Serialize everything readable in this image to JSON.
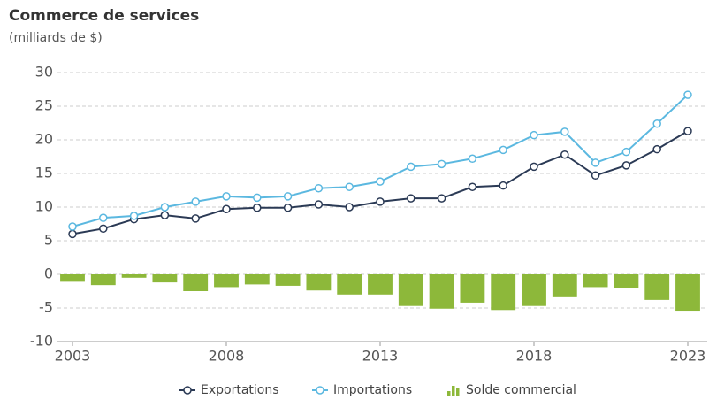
{
  "chart_data": {
    "type": "combo",
    "title": "Commerce de services",
    "subtitle": "(milliards de $)",
    "x": [
      2003,
      2004,
      2005,
      2006,
      2007,
      2008,
      2009,
      2010,
      2011,
      2012,
      2013,
      2014,
      2015,
      2016,
      2017,
      2018,
      2019,
      2020,
      2021,
      2022,
      2023
    ],
    "xlim": [
      2003,
      2023
    ],
    "xticks": [
      2003,
      2008,
      2013,
      2018,
      2023
    ],
    "ylim": [
      -10,
      30
    ],
    "yticks": [
      -10,
      -5,
      0,
      5,
      10,
      15,
      20,
      25,
      30
    ],
    "grid": true,
    "legend": "bottom",
    "series": [
      {
        "name": "Solde commercial",
        "type": "bar",
        "color": "#8db83a",
        "values": [
          -1.1,
          -1.6,
          -0.5,
          -1.2,
          -2.5,
          -1.9,
          -1.5,
          -1.7,
          -2.4,
          -3.0,
          -3.0,
          -4.7,
          -5.1,
          -4.2,
          -5.3,
          -4.7,
          -3.4,
          -1.9,
          -2.0,
          -3.8,
          -5.4
        ]
      },
      {
        "name": "Exportations",
        "type": "line",
        "color": "#2b3a55",
        "values": [
          6.0,
          6.8,
          8.2,
          8.8,
          8.3,
          9.7,
          9.9,
          9.9,
          10.4,
          10.0,
          10.8,
          11.3,
          11.3,
          13.0,
          13.2,
          16.0,
          17.8,
          14.7,
          16.2,
          18.6,
          21.3
        ]
      },
      {
        "name": "Importations",
        "type": "line",
        "color": "#5bb8e0",
        "values": [
          7.1,
          8.4,
          8.7,
          10.0,
          10.8,
          11.6,
          11.4,
          11.6,
          12.8,
          13.0,
          13.8,
          16.0,
          16.4,
          17.2,
          18.5,
          20.7,
          21.2,
          16.6,
          18.2,
          22.4,
          26.7
        ]
      }
    ]
  }
}
